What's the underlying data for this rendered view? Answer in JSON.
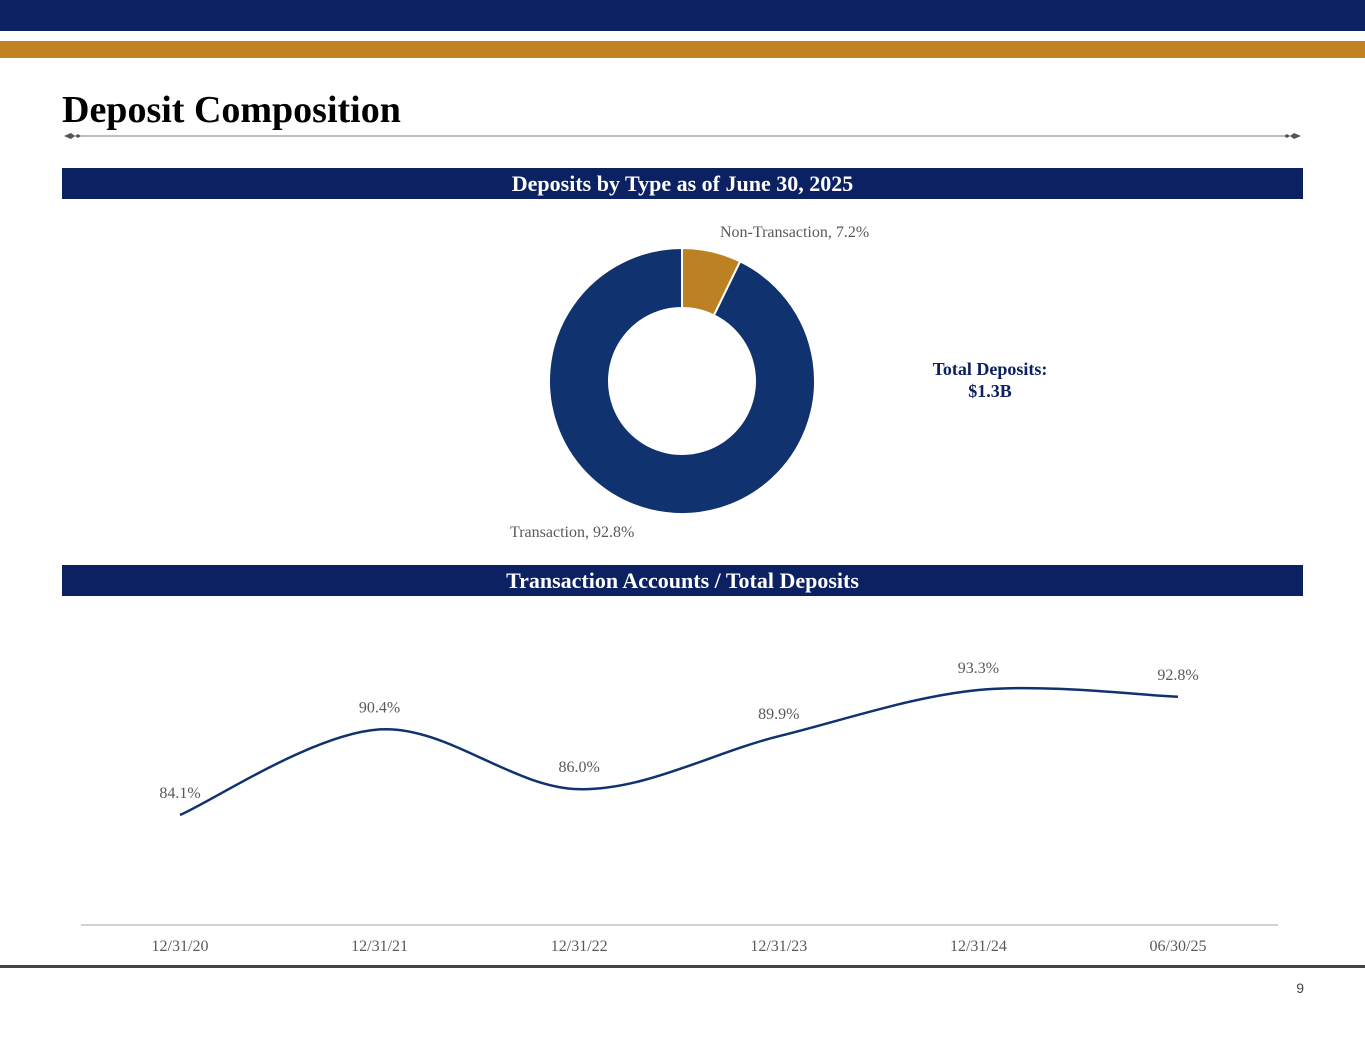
{
  "page": {
    "title": "Deposit Composition",
    "page_number": "9"
  },
  "colors": {
    "navy": "#0b2161",
    "gold": "#c28222",
    "donut_navy": "#10326e",
    "donut_gold": "#bb8122",
    "line": "#10326e",
    "text_gray": "#595959"
  },
  "sections": {
    "deposits_by_type": "Deposits by Type as of June 30, 2025",
    "transaction_ratio": "Transaction Accounts / Total Deposits"
  },
  "total_deposits": {
    "label": "Total Deposits:",
    "value": "$1.3B"
  },
  "chart_data": [
    {
      "type": "pie",
      "style": "donut",
      "title": "Deposits by Type as of June 30, 2025",
      "slices": [
        {
          "name": "Non-Transaction",
          "value": 7.2,
          "label": "Non-Transaction, 7.2%"
        },
        {
          "name": "Transaction",
          "value": 92.8,
          "label": "Transaction, 92.8%"
        }
      ]
    },
    {
      "type": "line",
      "title": "Transaction Accounts / Total Deposits",
      "categories": [
        "12/31/20",
        "12/31/21",
        "12/31/22",
        "12/31/23",
        "12/31/24",
        "06/30/25"
      ],
      "values": [
        84.1,
        90.4,
        86.0,
        89.9,
        93.3,
        92.8
      ],
      "data_labels": [
        "84.1%",
        "90.4%",
        "86.0%",
        "89.9%",
        "93.3%",
        "92.8%"
      ],
      "smooth": true,
      "grid": false,
      "ylim": [
        75,
        97
      ]
    }
  ]
}
